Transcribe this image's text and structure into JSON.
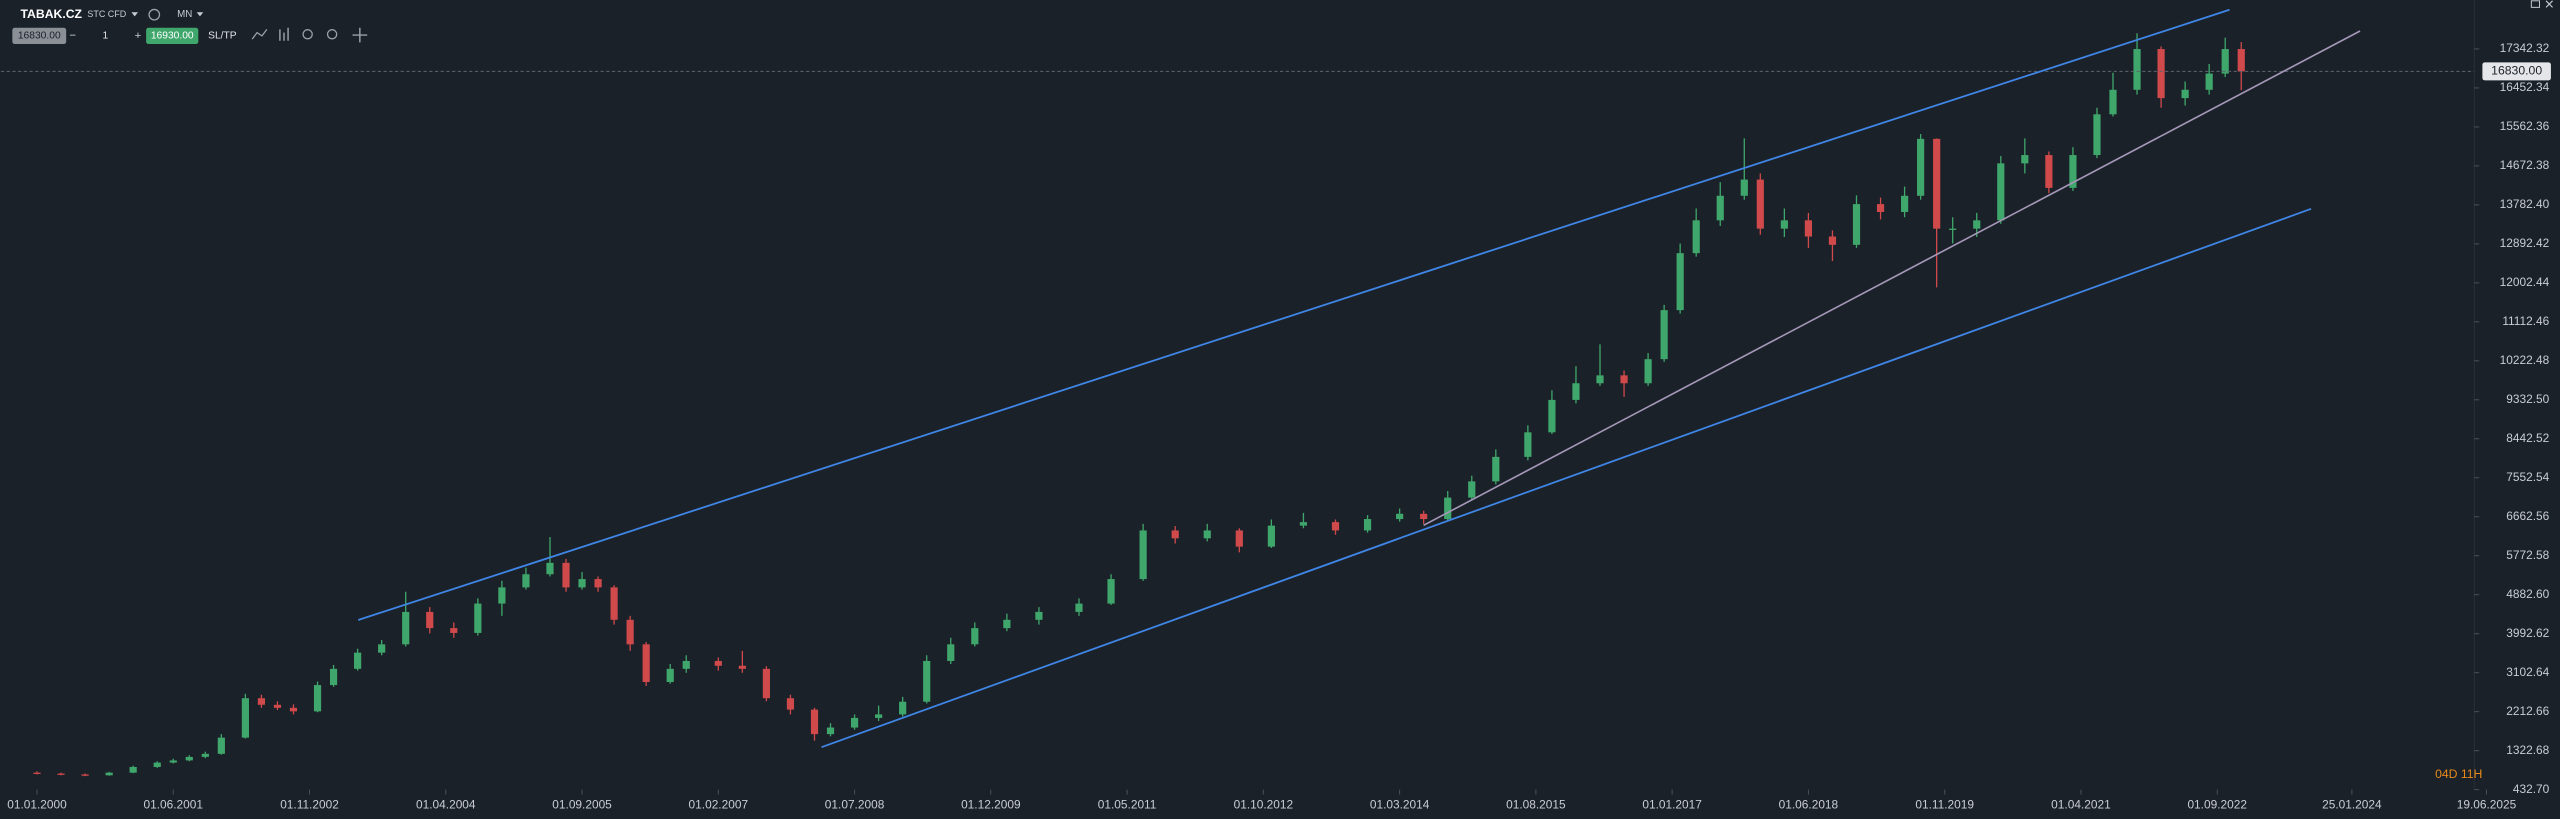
{
  "toolbar": {
    "symbol": "TABAK.CZ",
    "instrument": "STC CFD",
    "timeframe": "MN",
    "sell_price": "16830.00",
    "minus": "−",
    "volume": "1",
    "plus": "+",
    "buy_price": "16930.00",
    "sltp": "SL/TP"
  },
  "chart_data": {
    "type": "candlestick",
    "up_color": "#3fa76b",
    "down_color": "#d0494b",
    "xlim": [
      -4.5,
      305.9
    ],
    "ylim": [
      432.7,
      18459.7
    ],
    "x": [
      0,
      3,
      6,
      9,
      12,
      15,
      17,
      19,
      21,
      23,
      26,
      28,
      30,
      32,
      35,
      37,
      40,
      43,
      46,
      49,
      52,
      55,
      58,
      61,
      64,
      66,
      68,
      70,
      72,
      74,
      76,
      79,
      81,
      85,
      88,
      91,
      94,
      97,
      99,
      102,
      105,
      108,
      111,
      114,
      117,
      121,
      125,
      130,
      134,
      138,
      142,
      146,
      150,
      154,
      158,
      162,
      166,
      170,
      173,
      176,
      179,
      182,
      186,
      189,
      192,
      195,
      198,
      201,
      203,
      205,
      207,
      210,
      213,
      215,
      218,
      221,
      224,
      227,
      230,
      233,
      235,
      237,
      239,
      242,
      245,
      248,
      251,
      254,
      257,
      259,
      262,
      265,
      268,
      271,
      273,
      275
    ],
    "open": [
      820,
      800,
      780,
      760,
      820,
      950,
      1050,
      1100,
      1180,
      1250,
      1620,
      2520,
      2370,
      2300,
      2220,
      2820,
      3190,
      3560,
      3750,
      4490,
      4120,
      4010,
      4680,
      5050,
      5350,
      5610,
      5050,
      5240,
      5050,
      4310,
      3750,
      2890,
      3190,
      3370,
      3260,
      3190,
      2520,
      2260,
      1700,
      1850,
      2070,
      2150,
      2440,
      3370,
      3750,
      4120,
      4310,
      4490,
      4680,
      5240,
      6350,
      6170,
      6350,
      5980,
      6460,
      6540,
      6350,
      6610,
      6730,
      6610,
      7100,
      7470,
      8030,
      8590,
      9330,
      9710,
      9890,
      9710,
      10260,
      11380,
      12680,
      13430,
      13990,
      14360,
      13240,
      13430,
      13060,
      12870,
      13800,
      13620,
      13990,
      15290,
      13240,
      13240,
      13430,
      14730,
      14920,
      14170,
      14920,
      15850,
      16410,
      17340,
      16220,
      16410,
      16780,
      17340
    ],
    "high": [
      850,
      820,
      800,
      840,
      980,
      1080,
      1140,
      1220,
      1300,
      1700,
      2620,
      2600,
      2450,
      2380,
      2900,
      3280,
      3650,
      3850,
      4950,
      4600,
      4250,
      4800,
      5200,
      5500,
      6200,
      5700,
      5400,
      5300,
      5100,
      4400,
      3800,
      3300,
      3500,
      3450,
      3600,
      3250,
      2600,
      2300,
      1950,
      2150,
      2350,
      2550,
      3500,
      3900,
      4250,
      4450,
      4600,
      4800,
      5350,
      6500,
      6450,
      6500,
      6400,
      6600,
      6750,
      6600,
      6700,
      6850,
      6800,
      7250,
      7600,
      8200,
      8750,
      9550,
      10100,
      10600,
      10000,
      10400,
      11500,
      12900,
      13700,
      14300,
      15300,
      14500,
      13700,
      13600,
      13200,
      14000,
      13950,
      14200,
      15400,
      15300,
      13500,
      13600,
      14900,
      15300,
      15000,
      15100,
      16000,
      16800,
      17700,
      17400,
      16600,
      17000,
      17600,
      17500
    ],
    "low": [
      780,
      760,
      740,
      750,
      810,
      930,
      1030,
      1080,
      1150,
      1230,
      1600,
      2300,
      2250,
      2150,
      2200,
      2780,
      3150,
      3500,
      3700,
      4000,
      3900,
      3950,
      4400,
      5000,
      5300,
      4950,
      5000,
      4950,
      4200,
      3600,
      2800,
      2850,
      3100,
      3150,
      3100,
      2450,
      2150,
      1550,
      1650,
      1800,
      2000,
      2100,
      2400,
      3300,
      3700,
      4050,
      4200,
      4400,
      4650,
      5200,
      6050,
      6100,
      5850,
      5950,
      6400,
      6250,
      6300,
      6550,
      6500,
      6580,
      7050,
      7400,
      7950,
      8550,
      9250,
      9650,
      9400,
      9650,
      10200,
      11300,
      12600,
      13300,
      13900,
      13100,
      13050,
      12800,
      12500,
      12800,
      13450,
      13500,
      13900,
      11900,
      12900,
      13050,
      13350,
      14500,
      14050,
      14100,
      14850,
      15800,
      16300,
      16000,
      16050,
      16300,
      16700,
      16400
    ],
    "close": [
      800,
      780,
      760,
      820,
      950,
      1050,
      1100,
      1180,
      1250,
      1620,
      2520,
      2370,
      2300,
      2220,
      2820,
      3190,
      3560,
      3750,
      4490,
      4120,
      4010,
      4680,
      5050,
      5350,
      5610,
      5050,
      5240,
      5050,
      4310,
      3750,
      2890,
      3190,
      3370,
      3260,
      3190,
      2520,
      2260,
      1700,
      1850,
      2070,
      2150,
      2440,
      3370,
      3750,
      4120,
      4310,
      4490,
      4680,
      5240,
      6350,
      6170,
      6350,
      5980,
      6460,
      6540,
      6350,
      6610,
      6730,
      6610,
      7100,
      7470,
      8030,
      8590,
      9330,
      9710,
      9890,
      9710,
      10260,
      11380,
      12680,
      13430,
      13990,
      14360,
      13240,
      13430,
      13060,
      12870,
      13800,
      13620,
      13990,
      15290,
      13240,
      13240,
      13430,
      14730,
      14920,
      14170,
      14920,
      15850,
      16410,
      17340,
      16220,
      16410,
      16780,
      17340,
      16830
    ],
    "yticks": [
      {
        "value": 432.7,
        "label": "432.70"
      },
      {
        "value": 1322.68,
        "label": "1322.68"
      },
      {
        "value": 2212.66,
        "label": "2212.66"
      },
      {
        "value": 3102.64,
        "label": "3102.64"
      },
      {
        "value": 3992.62,
        "label": "3992.62"
      },
      {
        "value": 4882.6,
        "label": "4882.60"
      },
      {
        "value": 5772.58,
        "label": "5772.58"
      },
      {
        "value": 6662.56,
        "label": "6662.56"
      },
      {
        "value": 7552.54,
        "label": "7552.54"
      },
      {
        "value": 8442.52,
        "label": "8442.52"
      },
      {
        "value": 9332.5,
        "label": "9332.50"
      },
      {
        "value": 10222.48,
        "label": "10222.48"
      },
      {
        "value": 11112.46,
        "label": "11112.46"
      },
      {
        "value": 12002.44,
        "label": "12002.44"
      },
      {
        "value": 12892.42,
        "label": "12892.42"
      },
      {
        "value": 13782.4,
        "label": "13782.40"
      },
      {
        "value": 14672.38,
        "label": "14672.38"
      },
      {
        "value": 15562.36,
        "label": "15562.36"
      },
      {
        "value": 16452.34,
        "label": "16452.34"
      },
      {
        "value": 17342.32,
        "label": "17342.32"
      }
    ],
    "xticks": [
      {
        "value": 0,
        "label": "01.01.2000"
      },
      {
        "value": 17,
        "label": "01.06.2001"
      },
      {
        "value": 34,
        "label": "01.11.2002"
      },
      {
        "value": 51,
        "label": "01.04.2004"
      },
      {
        "value": 68,
        "label": "01.09.2005"
      },
      {
        "value": 85,
        "label": "01.02.2007"
      },
      {
        "value": 102,
        "label": "01.07.2008"
      },
      {
        "value": 119,
        "label": "01.12.2009"
      },
      {
        "value": 136,
        "label": "01.05.2011"
      },
      {
        "value": 153,
        "label": "01.10.2012"
      },
      {
        "value": 170,
        "label": "01.03.2014"
      },
      {
        "value": 187,
        "label": "01.08.2015"
      },
      {
        "value": 204,
        "label": "01.01.2017"
      },
      {
        "value": 221,
        "label": "01.06.2018"
      },
      {
        "value": 238,
        "label": "01.11.2019"
      },
      {
        "value": 255,
        "label": "01.04.2021"
      },
      {
        "value": 272,
        "label": "01.09.2022"
      },
      {
        "value": 288.8,
        "label": "25.01.2024"
      },
      {
        "value": 305.6,
        "label": "19.06.2025"
      }
    ],
    "last_price": {
      "value": 16830,
      "label": "16830.00"
    },
    "countdown": "04D 11H"
  }
}
